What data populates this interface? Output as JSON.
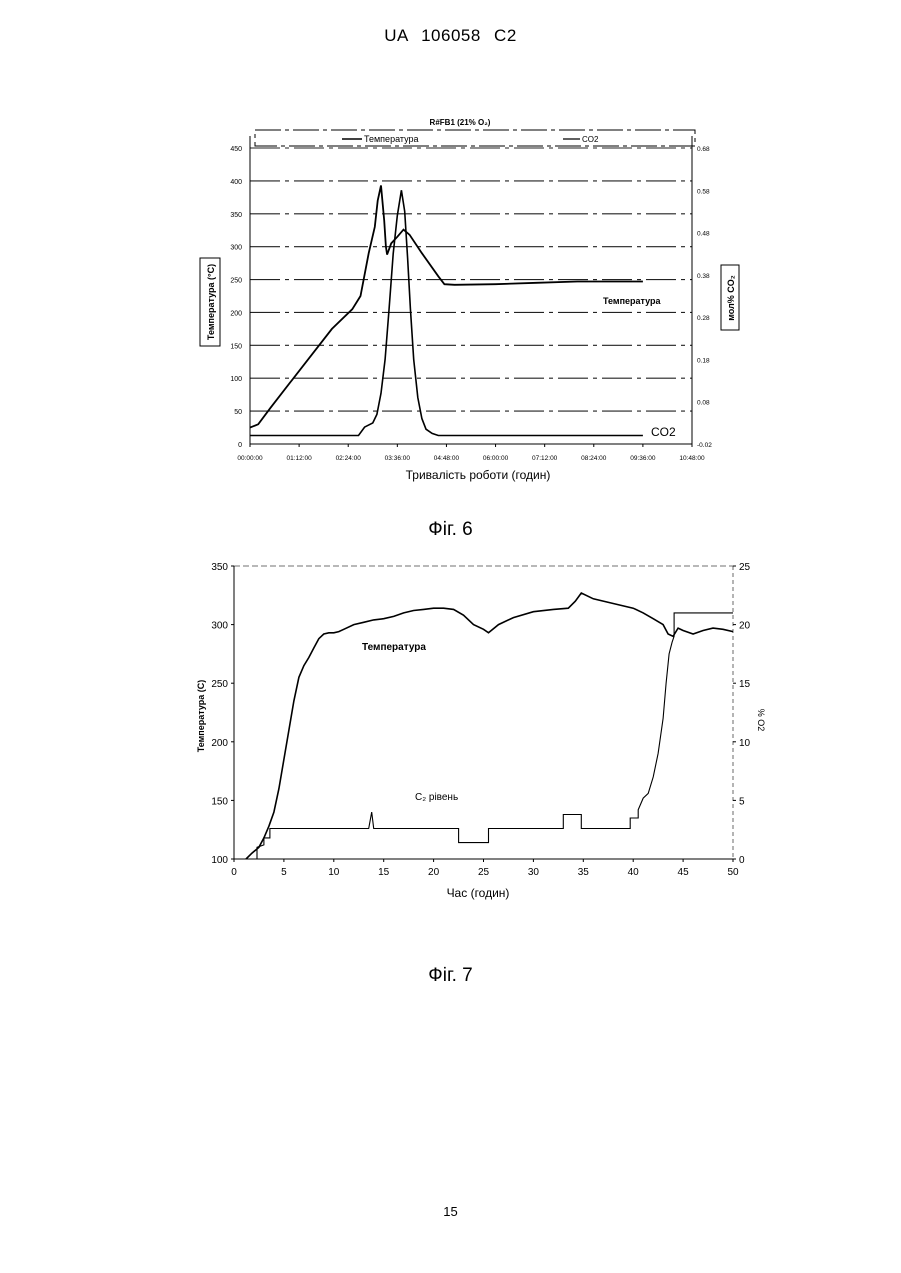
{
  "header": {
    "doc_id": "UA   106058   C2"
  },
  "page_number": "15",
  "figures": [
    {
      "caption": "Фіг.  6"
    },
    {
      "caption": "Фіг.  7"
    }
  ],
  "chart_data": [
    {
      "type": "line",
      "title": "R#FB1 (21% O₂)",
      "legend": [
        "Температура",
        "CO2"
      ],
      "legend_placement": "top",
      "xlabel": "Тривалість роботи (годин)",
      "ylabel": "Температура (°C)",
      "y2label": "мол% CO₂",
      "x_ticks": [
        "00:00:00",
        "01:12:00",
        "02:24:00",
        "03:36:00",
        "04:48:00",
        "06:00:00",
        "07:12:00",
        "08:24:00",
        "09:36:00",
        "10:48:00"
      ],
      "y_ticks": [
        "0",
        "50",
        "100",
        "150",
        "200",
        "250",
        "300",
        "350",
        "400",
        "450"
      ],
      "y2_ticks": [
        "-0.02",
        "0.08",
        "0.18",
        "0.28",
        "0.38",
        "0.48",
        "0.58",
        "0.68"
      ],
      "xlim_hours": [
        0,
        10.8
      ],
      "ylim": [
        0,
        450
      ],
      "y2lim": [
        -0.02,
        0.68
      ],
      "grid": true,
      "annotations": [
        "Температура",
        "CO2"
      ],
      "series": [
        {
          "name": "Температура",
          "axis": "left",
          "x_hours": [
            0,
            0.2,
            0.5,
            1.0,
            1.5,
            2.0,
            2.5,
            2.7,
            2.9,
            3.05,
            3.12,
            3.2,
            3.28,
            3.32,
            3.35,
            3.45,
            3.6,
            3.75,
            3.9,
            4.2,
            4.6,
            4.75,
            5.0,
            6.0,
            7.0,
            8.0,
            9.0,
            9.6
          ],
          "values": [
            25,
            30,
            55,
            95,
            135,
            175,
            205,
            225,
            290,
            330,
            370,
            393,
            340,
            300,
            288,
            305,
            315,
            326,
            318,
            290,
            255,
            243,
            242,
            243,
            245,
            247,
            247,
            247
          ]
        },
        {
          "name": "CO2",
          "axis": "right",
          "x_hours": [
            0,
            0.3,
            1.0,
            2.0,
            2.65,
            2.8,
            3.0,
            3.1,
            3.2,
            3.3,
            3.4,
            3.5,
            3.6,
            3.7,
            3.78,
            3.85,
            3.92,
            4.0,
            4.1,
            4.2,
            4.3,
            4.45,
            4.6,
            5.5,
            7.0,
            8.5,
            9.6
          ],
          "values": [
            0.0,
            0.0,
            0.0,
            0.0,
            0.0,
            0.02,
            0.03,
            0.05,
            0.1,
            0.18,
            0.3,
            0.43,
            0.52,
            0.58,
            0.53,
            0.42,
            0.3,
            0.18,
            0.09,
            0.04,
            0.015,
            0.005,
            0.0,
            0.0,
            0.0,
            0.0,
            0.0
          ]
        }
      ]
    },
    {
      "type": "line",
      "xlabel": "Час (годин)",
      "ylabel": "Температура (С)",
      "y2label": "% O2",
      "x_ticks": [
        "0",
        "5",
        "10",
        "15",
        "20",
        "25",
        "30",
        "35",
        "40",
        "45",
        "50"
      ],
      "y_ticks": [
        "100",
        "150",
        "200",
        "250",
        "300",
        "350"
      ],
      "y2_ticks": [
        "0",
        "5",
        "10",
        "15",
        "20",
        "25"
      ],
      "xlim": [
        0,
        50
      ],
      "ylim": [
        100,
        350
      ],
      "y2lim": [
        0,
        25
      ],
      "grid": false,
      "annotations": [
        "Температура",
        "C₂ рівень"
      ],
      "series": [
        {
          "name": "Температура",
          "axis": "left",
          "x": [
            1.2,
            1.8,
            2.5,
            3.0,
            3.5,
            4.0,
            4.5,
            5.0,
            5.5,
            6.0,
            6.5,
            7.0,
            7.5,
            8.0,
            8.5,
            9.0,
            9.5,
            10.0,
            10.5,
            11.0,
            12.0,
            13.0,
            14.0,
            15.0,
            16.0,
            17.0,
            18.0,
            19.0,
            20.0,
            21.0,
            22.0,
            23.0,
            24.0,
            25.0,
            25.5,
            26.5,
            28.0,
            30.0,
            32.0,
            33.5,
            34.2,
            34.8,
            36.0,
            38.0,
            40.0,
            41.0,
            42.0,
            43.0,
            43.5,
            44.0,
            44.5,
            45.0,
            46.0,
            47.0,
            48.0,
            49.0,
            50.0
          ],
          "values": [
            100,
            105,
            110,
            118,
            128,
            140,
            160,
            185,
            210,
            235,
            255,
            265,
            272,
            280,
            288,
            292,
            293,
            293,
            294,
            296,
            300,
            302,
            304,
            305,
            307,
            310,
            312,
            313,
            314,
            314,
            313,
            308,
            300,
            296,
            293,
            300,
            306,
            311,
            313,
            314,
            320,
            327,
            322,
            318,
            314,
            310,
            305,
            300,
            292,
            290,
            297,
            295,
            292,
            295,
            297,
            296,
            294
          ]
        },
        {
          "name": "C₂ рівень",
          "axis": "right",
          "x": [
            1.5,
            2.3,
            2.3,
            3.0,
            3.0,
            3.6,
            3.6,
            4.5,
            13.5,
            13.8,
            14.0,
            22.5,
            22.5,
            25.5,
            25.5,
            33.0,
            33.0,
            34.8,
            34.8,
            39.7,
            39.7,
            40.5,
            40.5,
            41.0,
            41.5,
            42.0,
            42.5,
            43.0,
            43.3,
            43.6,
            43.9,
            44.1,
            44.1,
            45.0,
            50.0
          ],
          "values": [
            0,
            0,
            1,
            1.2,
            1.8,
            1.8,
            2.6,
            2.6,
            2.6,
            4.0,
            2.6,
            2.6,
            1.4,
            1.4,
            2.6,
            2.6,
            3.8,
            3.8,
            2.6,
            2.6,
            3.5,
            3.5,
            4.2,
            5.2,
            5.6,
            7.0,
            9.0,
            12.0,
            15.0,
            17.5,
            18.5,
            19.0,
            21.0,
            21.0,
            21.0
          ]
        }
      ]
    }
  ]
}
